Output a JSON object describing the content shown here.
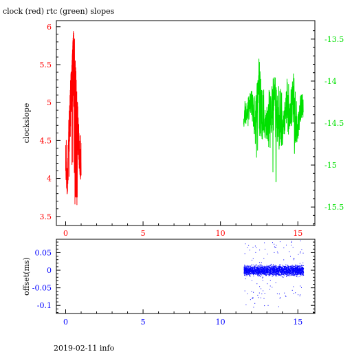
{
  "header": {
    "title": "clock (red) rtc (green) slopes"
  },
  "footer": {
    "info": "2019-02-11 info"
  },
  "colors": {
    "clock": "#ff0000",
    "rtc": "#00e000",
    "offset": "#0000ff",
    "axes": "#000000"
  },
  "chart_data": [
    {
      "type": "line",
      "title": "clock (red) rtc (green) slopes",
      "ylabel": "clockslope",
      "xlim": [
        -0.6,
        16.1
      ],
      "ylim": [
        3.38,
        6.08
      ],
      "y2lim": [
        -15.72,
        -13.28
      ],
      "x_ticks": [
        0,
        5,
        10,
        15
      ],
      "y_ticks": [
        3.5,
        4,
        4.5,
        5,
        5.5,
        6
      ],
      "y2_ticks": [
        -13.5,
        -14,
        -14.5,
        -15,
        -15.5
      ],
      "x_tick_labels": [
        "0",
        "5",
        "10",
        "15"
      ],
      "y_tick_labels": [
        "3.5",
        "4",
        "4.5",
        "5",
        "5.5",
        "6"
      ],
      "y2_tick_labels": [
        "-13.5",
        "-14",
        "-14.5",
        "-15",
        "-15.5"
      ],
      "grid": false,
      "series": [
        {
          "axis": "left",
          "x": [
            0.0,
            0.1,
            0.2,
            0.3,
            0.4,
            0.5,
            0.6,
            0.7,
            0.8,
            0.9,
            1.0
          ],
          "y": [
            4.2,
            3.9,
            4.5,
            4.9,
            5.4,
            5.6,
            5.2,
            4.9,
            4.6,
            4.3,
            4.1
          ],
          "low": [
            3.75,
            3.8,
            3.95,
            4.1,
            4.1,
            4.0,
            3.6,
            3.5,
            3.9,
            4.0,
            3.95
          ],
          "high": [
            4.6,
            4.5,
            4.8,
            5.3,
            5.5,
            5.95,
            5.8,
            5.2,
            4.9,
            4.8,
            4.5
          ]
        },
        {
          "axis": "right",
          "x": [
            11.5,
            11.75,
            12.0,
            12.25,
            12.5,
            12.75,
            13.0,
            13.25,
            13.5,
            13.75,
            14.0,
            14.25,
            14.5,
            14.75,
            15.0,
            15.25,
            15.35
          ],
          "y": [
            -14.45,
            -14.35,
            -14.25,
            -14.5,
            -13.9,
            -14.5,
            -14.5,
            -14.4,
            -14.2,
            -14.55,
            -14.6,
            -14.3,
            -14.4,
            -14.15,
            -14.55,
            -14.3,
            -14.35
          ],
          "low": [
            -14.6,
            -14.55,
            -14.6,
            -15.1,
            -14.7,
            -14.7,
            -14.8,
            -14.8,
            -15.55,
            -14.9,
            -14.8,
            -14.7,
            -14.6,
            -14.9,
            -14.7,
            -14.6,
            -14.5
          ],
          "high": [
            -14.25,
            -14.1,
            -14.05,
            -14.2,
            -13.7,
            -14.1,
            -14.1,
            -14.0,
            -13.95,
            -14.0,
            -14.15,
            -13.9,
            -14.1,
            -13.72,
            -14.2,
            -14.1,
            -14.2
          ]
        }
      ]
    },
    {
      "type": "scatter",
      "ylabel": "offset(ms)",
      "xlim": [
        -0.6,
        16.1
      ],
      "ylim": [
        -0.123,
        0.088
      ],
      "x_ticks": [
        0,
        5,
        10,
        15
      ],
      "y_ticks": [
        0.05,
        0,
        -0.05,
        -0.1
      ],
      "x_tick_labels": [
        "0",
        "5",
        "10",
        "15"
      ],
      "y_tick_labels": [
        "0.05",
        "0",
        "-0.05",
        "-0.1"
      ],
      "grid": false,
      "series": [
        {
          "x_range": [
            11.5,
            15.35
          ],
          "center": 0.0,
          "band": [
            -0.02,
            0.02
          ],
          "outlier_range": [
            -0.105,
            0.085
          ]
        }
      ]
    }
  ]
}
